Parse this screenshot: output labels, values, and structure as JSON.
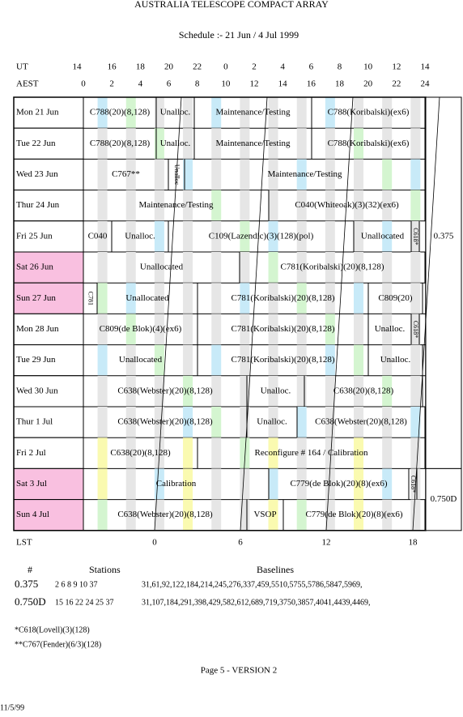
{
  "header": {
    "title": "AUSTRALIA TELESCOPE COMPACT ARRAY",
    "subtitle": "Schedule :- 21 Jun / 4 Jul 1999"
  },
  "axes": {
    "ut_label": "UT",
    "aest_label": "AEST",
    "lst_label": "LST",
    "ut": [
      14,
      16,
      18,
      20,
      22,
      0,
      2,
      4,
      6,
      8,
      10,
      12,
      14
    ],
    "aest": [
      0,
      2,
      4,
      6,
      8,
      10,
      12,
      14,
      16,
      18,
      20,
      22,
      24
    ],
    "lst": [
      0,
      6,
      12,
      18
    ]
  },
  "rows": [
    {
      "day": "Mon  21  Jun",
      "cells": [
        "C788(20)(8,128)",
        "Unalloc.",
        "Maintenance/Testing",
        "C788(Koribalski)(ex6)"
      ]
    },
    {
      "day": "Tue  22  Jun",
      "cells": [
        "C788(20)(8,128)",
        "Unalloc.",
        "Maintenance/Testing",
        "C788(Koribalski)(ex6)"
      ]
    },
    {
      "day": "Wed  23  Jun",
      "cells": [
        "C767**",
        "Unalloc",
        "Maintenance/Testing"
      ]
    },
    {
      "day": "Thur 24  Jun",
      "cells": [
        "Maintenance/Testing",
        "C040(Whiteoak)(3)(32)(ex6)"
      ]
    },
    {
      "day": "Fri   25  Jun",
      "cells": [
        "C040",
        "Unalloc.",
        "C109(Lazendic)(3)(128)(pol)",
        "Unallocated",
        "C618*"
      ]
    },
    {
      "day": "Sat   26  Jun",
      "cells": [
        "Unallocated",
        "C781(Koribalski)(20)(8,128)"
      ]
    },
    {
      "day": "Sun   27  Jun",
      "cells": [
        "C781",
        "Unallocated",
        "C781(Koribalski)(20)(8,128)",
        "C809(20)"
      ]
    },
    {
      "day": "Mon  28  Jun",
      "cells": [
        "C809(de Blok)(4)(ex6)",
        "C781(Koribalski)(20)(8,128)",
        "Unalloc.",
        "C618*"
      ]
    },
    {
      "day": "Tue   29  Jun",
      "cells": [
        "Unallocated",
        "C781(Koribalski)(20)(8,128)",
        "Unalloc."
      ]
    },
    {
      "day": "Wed  30  Jun",
      "cells": [
        "C638(Webster)(20)(8,128)",
        "Unalloc.",
        "C638(20)(8,128)"
      ]
    },
    {
      "day": "Thur  1   Jul",
      "cells": [
        "C638(Webster)(20)(8,128)",
        "Unalloc.",
        "C638(Webster(20)(8,128)"
      ]
    },
    {
      "day": "Fri    2   Jul",
      "cells": [
        "C638(20)(8,128)",
        "Reconfigure # 164 / Calibration"
      ]
    },
    {
      "day": "Sat    3   Jul",
      "cells": [
        "Calibration",
        "C779(de Blok)(20)(8)(ex6)",
        "C618*"
      ]
    },
    {
      "day": "Sun    4   Jul",
      "cells": [
        "C638(Webster)(20)(8,128)",
        "VSOP",
        "C779(de Blok)(20)(8)(ex6)"
      ]
    }
  ],
  "configs": [
    "0.375",
    "0.750D"
  ],
  "config_table": {
    "headers": [
      "#",
      "Stations",
      "Baselines"
    ],
    "rows": [
      [
        "0.375",
        "2 6 8 9 10 37",
        "31,61,92,122,184,214,245,276,337,459,5510,5755,5786,5847,5969,"
      ],
      [
        "0.750D",
        "15 16 22 24 25 37",
        "31,107,184,291,398,429,582,612,689,719,3750,3857,4041,4439,4469,"
      ]
    ]
  },
  "notes": [
    "*C618(Lovell)(3)(128)",
    "**C767(Fender)(6/3)(128)"
  ],
  "footer": {
    "page": "Page 5 - VERSION 2",
    "date": "11/5/99"
  }
}
